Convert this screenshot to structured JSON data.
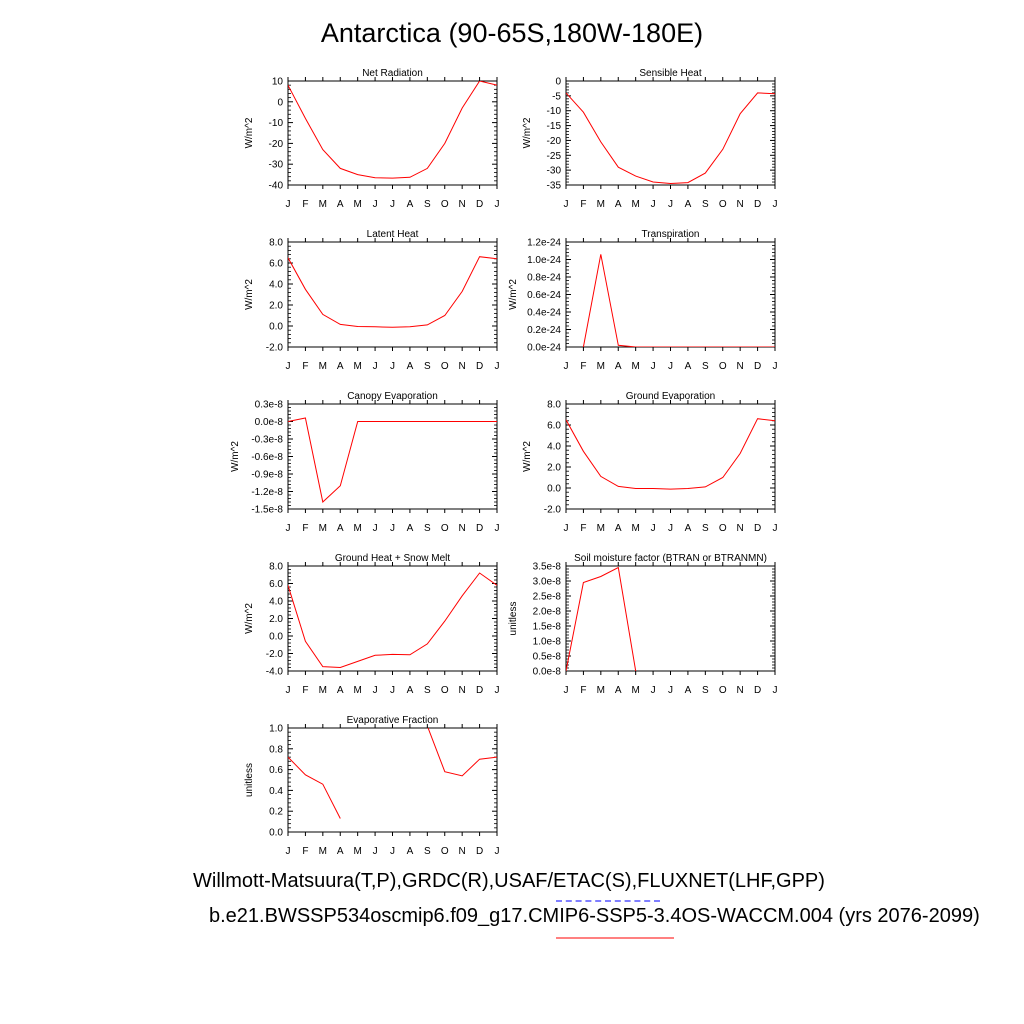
{
  "title": "Antarctica (90-65S,180W-180E)",
  "caption_obs": "Willmott-Matsuura(T,P),GRDC(R),USAF/ETAC(S),FLUXNET(LHF,GPP)",
  "caption_case": "b.e21.BWSSP534oscmip6.f09_g17.CMIP6-SSP5-3.4OS-WACCM.004 (yrs 2076-2099)",
  "colors": {
    "series": "#ff0000",
    "obs_underline": "#7f7fff",
    "case_underline": "#ff8080"
  },
  "chart_data": [
    {
      "type": "line",
      "title": "Net Radiation",
      "ylabel": "W/m^2",
      "categories": [
        "J",
        "F",
        "M",
        "A",
        "M",
        "J",
        "J",
        "A",
        "S",
        "O",
        "N",
        "D",
        "J"
      ],
      "ylim": [
        -40,
        10
      ],
      "yticks": [
        10,
        0,
        -10,
        -20,
        -30,
        -40
      ],
      "yticklabels": [
        "10",
        "0",
        "-10",
        "-20",
        "-30",
        "-40"
      ],
      "values": [
        8,
        -8,
        -23,
        -32,
        -35,
        -36.5,
        -36.7,
        -36.3,
        -32,
        -20,
        -3,
        10,
        8
      ]
    },
    {
      "type": "line",
      "title": "Sensible Heat",
      "ylabel": "W/m^2",
      "categories": [
        "J",
        "F",
        "M",
        "A",
        "M",
        "J",
        "J",
        "A",
        "S",
        "O",
        "N",
        "D",
        "J"
      ],
      "ylim": [
        -35,
        0
      ],
      "yticks": [
        0,
        -5,
        -10,
        -15,
        -20,
        -25,
        -30,
        -35
      ],
      "yticklabels": [
        "0",
        "-5",
        "-10",
        "-15",
        "-20",
        "-25",
        "-30",
        "-35"
      ],
      "values": [
        -4,
        -10.5,
        -20.5,
        -29,
        -32,
        -34,
        -34.5,
        -34.2,
        -31,
        -23,
        -11,
        -4,
        -4.3
      ]
    },
    {
      "type": "line",
      "title": "Latent Heat",
      "ylabel": "W/m^2",
      "categories": [
        "J",
        "F",
        "M",
        "A",
        "M",
        "J",
        "J",
        "A",
        "S",
        "O",
        "N",
        "D",
        "J"
      ],
      "ylim": [
        -2,
        8
      ],
      "yticks": [
        8,
        6,
        4,
        2,
        0,
        -2
      ],
      "yticklabels": [
        "8.0",
        "6.0",
        "4.0",
        "2.0",
        "0.0",
        "-2.0"
      ],
      "values": [
        6.5,
        3.5,
        1.1,
        0.15,
        -0.05,
        -0.08,
        -0.12,
        -0.08,
        0.1,
        1.0,
        3.3,
        6.6,
        6.4
      ]
    },
    {
      "type": "line",
      "title": "Transpiration",
      "ylabel": "W/m^2",
      "categories": [
        "J",
        "F",
        "M",
        "A",
        "M",
        "J",
        "J",
        "A",
        "S",
        "O",
        "N",
        "D",
        "J"
      ],
      "ylim": [
        0,
        1.2e-24
      ],
      "yticks": [
        1.2e-24,
        1e-24,
        8e-25,
        6e-25,
        4e-25,
        2e-25,
        0
      ],
      "yticklabels": [
        "1.2e-24",
        "1.0e-24",
        "0.8e-24",
        "0.6e-24",
        "0.4e-24",
        "0.2e-24",
        "0.0e-24"
      ],
      "values": [
        null,
        0,
        1.06e-24,
        2e-26,
        0,
        0,
        0,
        0,
        0,
        0,
        0,
        0,
        0
      ]
    },
    {
      "type": "line",
      "title": "Canopy Evaporation",
      "ylabel": "W/m^2",
      "categories": [
        "J",
        "F",
        "M",
        "A",
        "M",
        "J",
        "J",
        "A",
        "S",
        "O",
        "N",
        "D",
        "J"
      ],
      "ylim": [
        -1.5e-08,
        3e-09
      ],
      "yticks": [
        3e-09,
        0,
        -3e-09,
        -6e-09,
        -9e-09,
        -1.2e-08,
        -1.5e-08
      ],
      "yticklabels": [
        "0.3e-8",
        "0.0e-8",
        "-0.3e-8",
        "-0.6e-8",
        "-0.9e-8",
        "-1.2e-8",
        "-1.5e-8"
      ],
      "values": [
        0,
        6e-10,
        -1.38e-08,
        -1.1e-08,
        0,
        0,
        0,
        0,
        0,
        0,
        0,
        0,
        0
      ]
    },
    {
      "type": "line",
      "title": "Ground Evaporation",
      "ylabel": "W/m^2",
      "categories": [
        "J",
        "F",
        "M",
        "A",
        "M",
        "J",
        "J",
        "A",
        "S",
        "O",
        "N",
        "D",
        "J"
      ],
      "ylim": [
        -2,
        8
      ],
      "yticks": [
        8,
        6,
        4,
        2,
        0,
        -2
      ],
      "yticklabels": [
        "8.0",
        "6.0",
        "4.0",
        "2.0",
        "0.0",
        "-2.0"
      ],
      "values": [
        6.5,
        3.5,
        1.1,
        0.15,
        -0.05,
        -0.05,
        -0.1,
        -0.05,
        0.1,
        1.0,
        3.3,
        6.6,
        6.4
      ]
    },
    {
      "type": "line",
      "title": "Ground Heat + Snow Melt",
      "ylabel": "W/m^2",
      "categories": [
        "J",
        "F",
        "M",
        "A",
        "M",
        "J",
        "J",
        "A",
        "S",
        "O",
        "N",
        "D",
        "J"
      ],
      "ylim": [
        -4,
        8
      ],
      "yticks": [
        8,
        6,
        4,
        2,
        0,
        -2,
        -4
      ],
      "yticklabels": [
        "8.0",
        "6.0",
        "4.0",
        "2.0",
        "0.0",
        "-2.0",
        "-4.0"
      ],
      "values": [
        5.8,
        -0.6,
        -3.5,
        -3.6,
        -2.9,
        -2.2,
        -2.1,
        -2.15,
        -0.9,
        1.7,
        4.6,
        7.2,
        5.8
      ]
    },
    {
      "type": "line",
      "title": "Soil moisture factor (BTRAN or BTRANMN)",
      "ylabel": "unitless",
      "categories": [
        "J",
        "F",
        "M",
        "A",
        "M",
        "J",
        "J",
        "A",
        "S",
        "O",
        "N",
        "D",
        "J"
      ],
      "ylim": [
        0,
        3.5e-08
      ],
      "yticks": [
        3.5e-08,
        3e-08,
        2.5e-08,
        2e-08,
        1.5e-08,
        1e-08,
        5e-09,
        0
      ],
      "yticklabels": [
        "3.5e-8",
        "3.0e-8",
        "2.5e-8",
        "2.0e-8",
        "1.5e-8",
        "1.0e-8",
        "0.5e-8",
        "0.0e-8"
      ],
      "values": [
        0,
        2.95e-08,
        3.15e-08,
        3.45e-08,
        0,
        null,
        null,
        null,
        null,
        null,
        null,
        null,
        null
      ]
    },
    {
      "type": "line",
      "title": "Evaporative Fraction",
      "ylabel": "unitless",
      "categories": [
        "J",
        "F",
        "M",
        "A",
        "M",
        "J",
        "J",
        "A",
        "S",
        "O",
        "N",
        "D",
        "J"
      ],
      "ylim": [
        0,
        1
      ],
      "yticks": [
        1,
        0.8,
        0.6,
        0.4,
        0.2,
        0
      ],
      "yticklabels": [
        "1.0",
        "0.8",
        "0.6",
        "0.4",
        "0.2",
        "0.0"
      ],
      "values": [
        0.72,
        0.55,
        0.46,
        0.13,
        null,
        null,
        null,
        null,
        1.02,
        0.58,
        0.54,
        0.7,
        0.72
      ]
    }
  ]
}
